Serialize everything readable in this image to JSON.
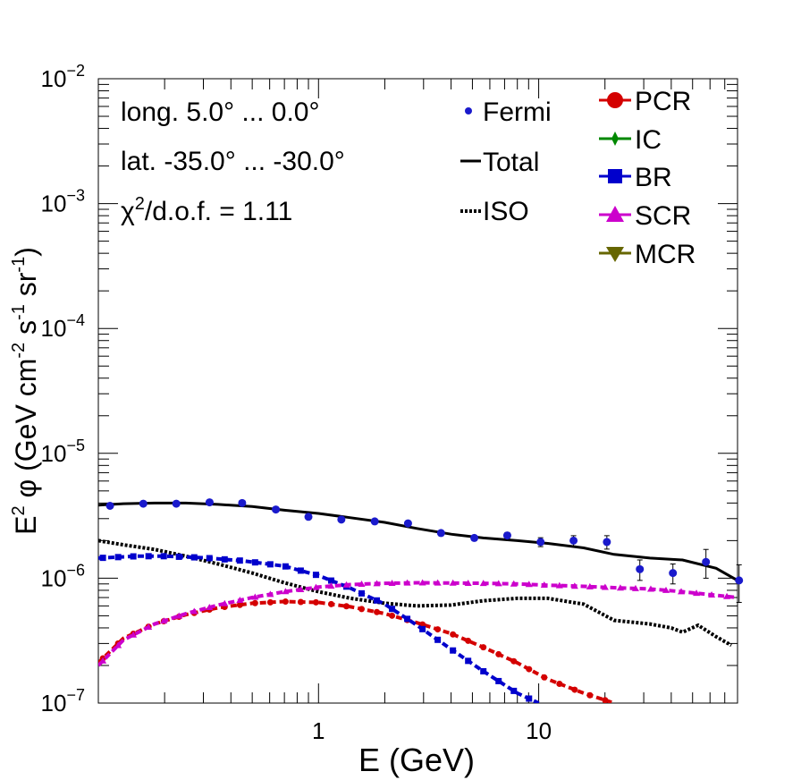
{
  "chart_data": {
    "type": "line",
    "xscale": "log",
    "yscale": "log",
    "xlim": [
      0.1,
      80
    ],
    "ylim": [
      1e-07,
      0.01
    ],
    "xlabel": "E (GeV)",
    "ylabel": {
      "base": "E",
      "sup1": "2",
      "phi": " φ (GeV cm",
      "sup2": "-2",
      "s": " s",
      "sup3": "-1",
      "sr": " sr",
      "sup4": "-1",
      "close": ")"
    },
    "x_tick_labels": [
      {
        "value": 1,
        "label": "1"
      },
      {
        "value": 10,
        "label": "10"
      }
    ],
    "y_tick_labels": [
      {
        "value": 1e-07,
        "base": "10",
        "exp": "−7"
      },
      {
        "value": 1e-06,
        "base": "10",
        "exp": "−6"
      },
      {
        "value": 1e-05,
        "base": "10",
        "exp": "−5"
      },
      {
        "value": 0.0001,
        "base": "10",
        "exp": "−4"
      },
      {
        "value": 0.001,
        "base": "10",
        "exp": "−3"
      },
      {
        "value": 0.01,
        "base": "10",
        "exp": "−2"
      }
    ],
    "annotations": {
      "longitude": "long. 5.0° ... 0.0°",
      "latitude": "lat. -35.0° ... -30.0°",
      "chi_prefix": "χ",
      "chi_sup": "2",
      "chi_suffix": "/d.o.f. = 1.11"
    },
    "legend_left": [
      {
        "key": "fermi",
        "label": "Fermi"
      },
      {
        "key": "total",
        "label": "Total"
      },
      {
        "key": "iso",
        "label": "ISO"
      }
    ],
    "legend_right": [
      {
        "key": "pcr",
        "label": "PCR"
      },
      {
        "key": "ic",
        "label": "IC"
      },
      {
        "key": "br",
        "label": "BR"
      },
      {
        "key": "scr",
        "label": "SCR"
      },
      {
        "key": "mcr",
        "label": "MCR"
      }
    ],
    "colors": {
      "fermi": "#1a1acc",
      "total": "#000000",
      "iso": "#000000",
      "pcr": "#d40000",
      "ic": "#008800",
      "br": "#0000cc",
      "scr": "#cc00cc",
      "mcr": "#666600"
    },
    "series": [
      {
        "name": "Total",
        "key": "total",
        "style": "solid",
        "x": [
          0.1,
          0.13,
          0.18,
          0.25,
          0.35,
          0.5,
          0.7,
          1.0,
          1.4,
          2.0,
          2.8,
          4.0,
          5.6,
          8.0,
          11.0,
          16.0,
          22.0,
          32.0,
          45.0,
          64.0,
          80.0
        ],
        "y": [
          3.85e-06,
          3.95e-06,
          4e-06,
          4e-06,
          3.9e-06,
          3.75e-06,
          3.5e-06,
          3.3e-06,
          3.05e-06,
          2.8e-06,
          2.5e-06,
          2.25e-06,
          2.1e-06,
          2e-06,
          1.9e-06,
          1.75e-06,
          1.55e-06,
          1.45e-06,
          1.4e-06,
          1.2e-06,
          9.6e-07
        ]
      },
      {
        "name": "ISO",
        "key": "iso",
        "style": "dotted",
        "x": [
          0.1,
          0.13,
          0.18,
          0.25,
          0.35,
          0.5,
          0.7,
          1.0,
          1.4,
          2.0,
          2.8,
          4.0,
          5.6,
          8.0,
          11.0,
          16.0,
          22.0,
          32.0,
          40.0,
          45.0,
          53.0,
          64.0,
          75.0
        ],
        "y": [
          2e-06,
          1.85e-06,
          1.7e-06,
          1.5e-06,
          1.3e-06,
          1.1e-06,
          9.2e-07,
          7.8e-07,
          6.9e-07,
          6.3e-07,
          6e-07,
          6.1e-07,
          6.6e-07,
          6.9e-07,
          6.9e-07,
          6.2e-07,
          4.6e-07,
          4.3e-07,
          4e-07,
          3.7e-07,
          4.2e-07,
          3.4e-07,
          2.9e-07
        ]
      },
      {
        "name": "PCR",
        "key": "pcr",
        "style": "dashed",
        "marker": "circle",
        "x": [
          0.1,
          0.13,
          0.18,
          0.25,
          0.35,
          0.5,
          0.7,
          1.0,
          1.4,
          2.0,
          2.8,
          4.0,
          5.6,
          8.0,
          11.0,
          16.0,
          22.0
        ],
        "y": [
          2.1e-07,
          3.3e-07,
          4.3e-07,
          5.1e-07,
          5.8e-07,
          6.3e-07,
          6.5e-07,
          6.4e-07,
          5.9e-07,
          5.2e-07,
          4.4e-07,
          3.6e-07,
          2.8e-07,
          2.1e-07,
          1.55e-07,
          1.2e-07,
          1e-07
        ]
      },
      {
        "name": "BR",
        "key": "br",
        "style": "dashed",
        "marker": "square",
        "x": [
          0.1,
          0.15,
          0.2,
          0.3,
          0.45,
          0.7,
          1.0,
          1.4,
          2.0,
          2.8,
          4.0,
          5.6,
          8.0,
          10.0
        ],
        "y": [
          1.45e-06,
          1.5e-06,
          1.5e-06,
          1.46e-06,
          1.38e-06,
          1.25e-06,
          1.05e-06,
          8.3e-07,
          6.2e-07,
          4.2e-07,
          2.7e-07,
          1.8e-07,
          1.2e-07,
          1e-07
        ]
      },
      {
        "name": "SCR",
        "key": "scr",
        "style": "dashed",
        "marker": "triangle",
        "x": [
          0.1,
          0.13,
          0.18,
          0.25,
          0.35,
          0.5,
          0.7,
          1.0,
          1.4,
          2.0,
          2.8,
          4.0,
          5.6,
          8.0,
          11.0,
          16.0,
          22.0,
          32.0,
          45.0,
          64.0,
          80.0
        ],
        "y": [
          2e-07,
          3.2e-07,
          4.3e-07,
          5.2e-07,
          6.1e-07,
          7e-07,
          7.8e-07,
          8.5e-07,
          8.9e-07,
          9.1e-07,
          9.2e-07,
          9.15e-07,
          9.1e-07,
          9e-07,
          8.8e-07,
          8.6e-07,
          8.4e-07,
          8.2e-07,
          7.8e-07,
          7.3e-07,
          7e-07
        ]
      }
    ],
    "fermi_points": {
      "name": "Fermi",
      "key": "fermi",
      "x": [
        0.113,
        0.16,
        0.226,
        0.32,
        0.45,
        0.64,
        0.9,
        1.27,
        1.8,
        2.55,
        3.6,
        5.1,
        7.2,
        10.2,
        14.4,
        20.4,
        28.8,
        40.7,
        57.5,
        81.3
      ],
      "y": [
        3.8e-06,
        3.95e-06,
        3.95e-06,
        4.05e-06,
        4e-06,
        3.55e-06,
        3.1e-06,
        2.95e-06,
        2.85e-06,
        2.75e-06,
        2.3e-06,
        2.1e-06,
        2.2e-06,
        1.95e-06,
        2e-06,
        1.95e-06,
        1.18e-06,
        1.1e-06,
        1.35e-06,
        9.6e-07
      ],
      "yerr": [
        0,
        0,
        0,
        0,
        0,
        0,
        0,
        0,
        0,
        0,
        0,
        0,
        1.2e-07,
        1.6e-07,
        1.9e-07,
        2.4e-07,
        2.2e-07,
        2e-07,
        3.5e-07,
        3.2e-07
      ]
    }
  }
}
